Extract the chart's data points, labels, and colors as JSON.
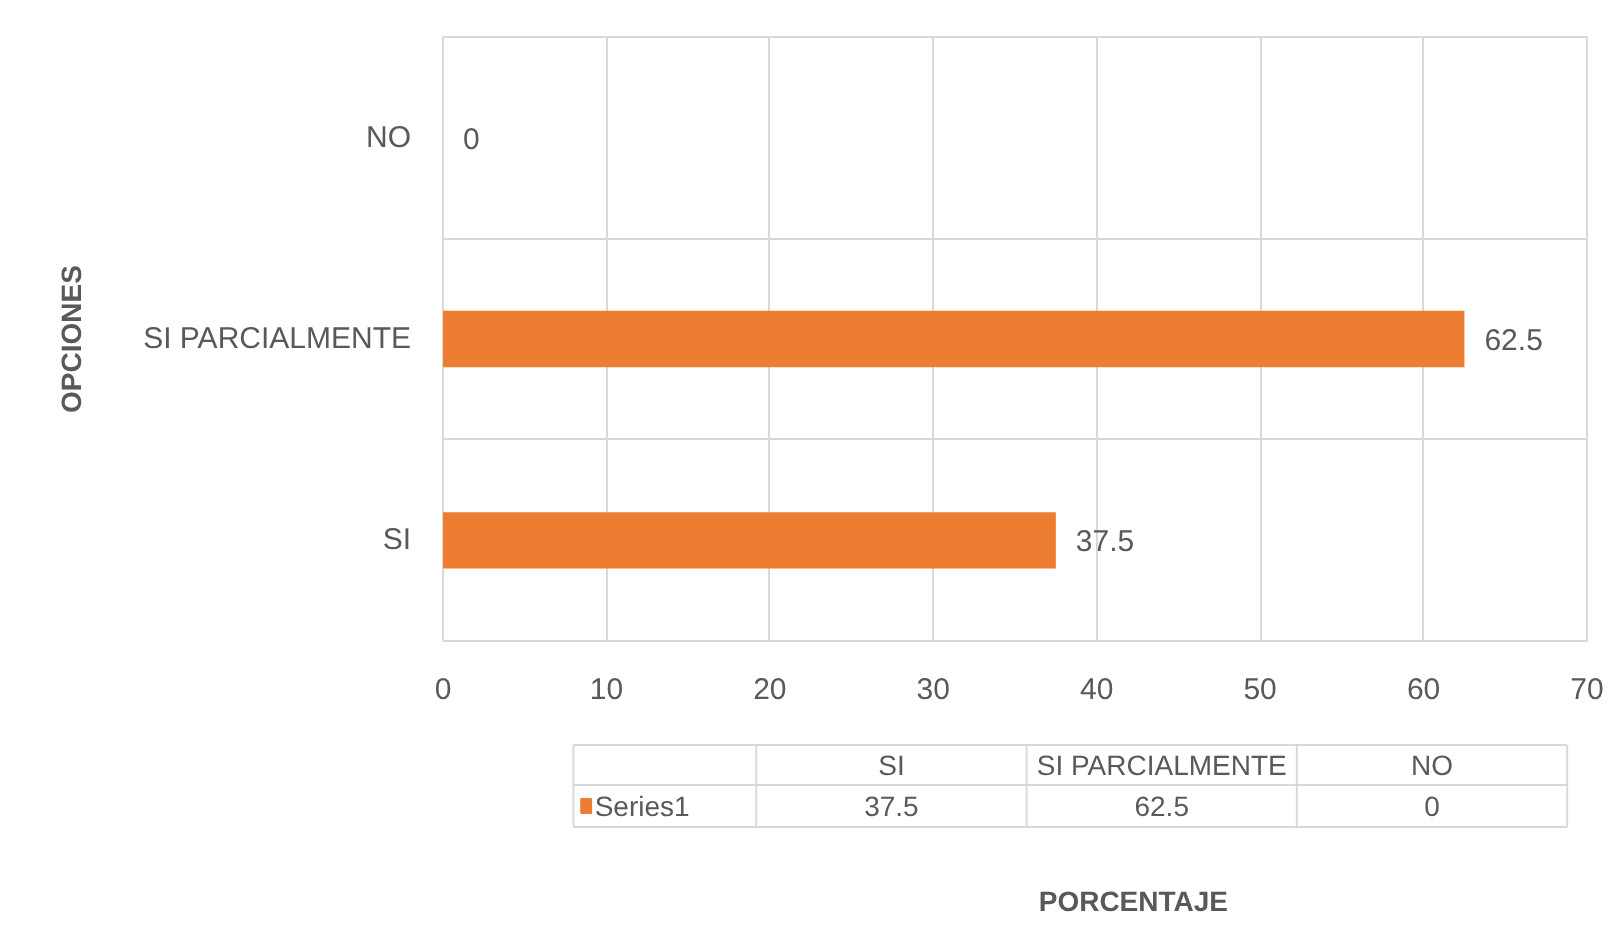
{
  "chart_data": {
    "type": "bar",
    "orientation": "horizontal",
    "categories": [
      "NO",
      "SI PARCIALMENTE",
      "SI"
    ],
    "series": [
      {
        "name": "Series1",
        "color": "#ed7d31",
        "values": [
          0,
          62.5,
          37.5
        ],
        "value_labels": [
          "0",
          "62.5",
          "37.5"
        ]
      }
    ],
    "xlim": [
      0,
      70
    ],
    "xticks": [
      0,
      10,
      20,
      30,
      40,
      50,
      60,
      70
    ],
    "annotations": [
      "PORCENTAJE"
    ],
    "ylabel": "OPCIONES",
    "grid": true
  }
}
